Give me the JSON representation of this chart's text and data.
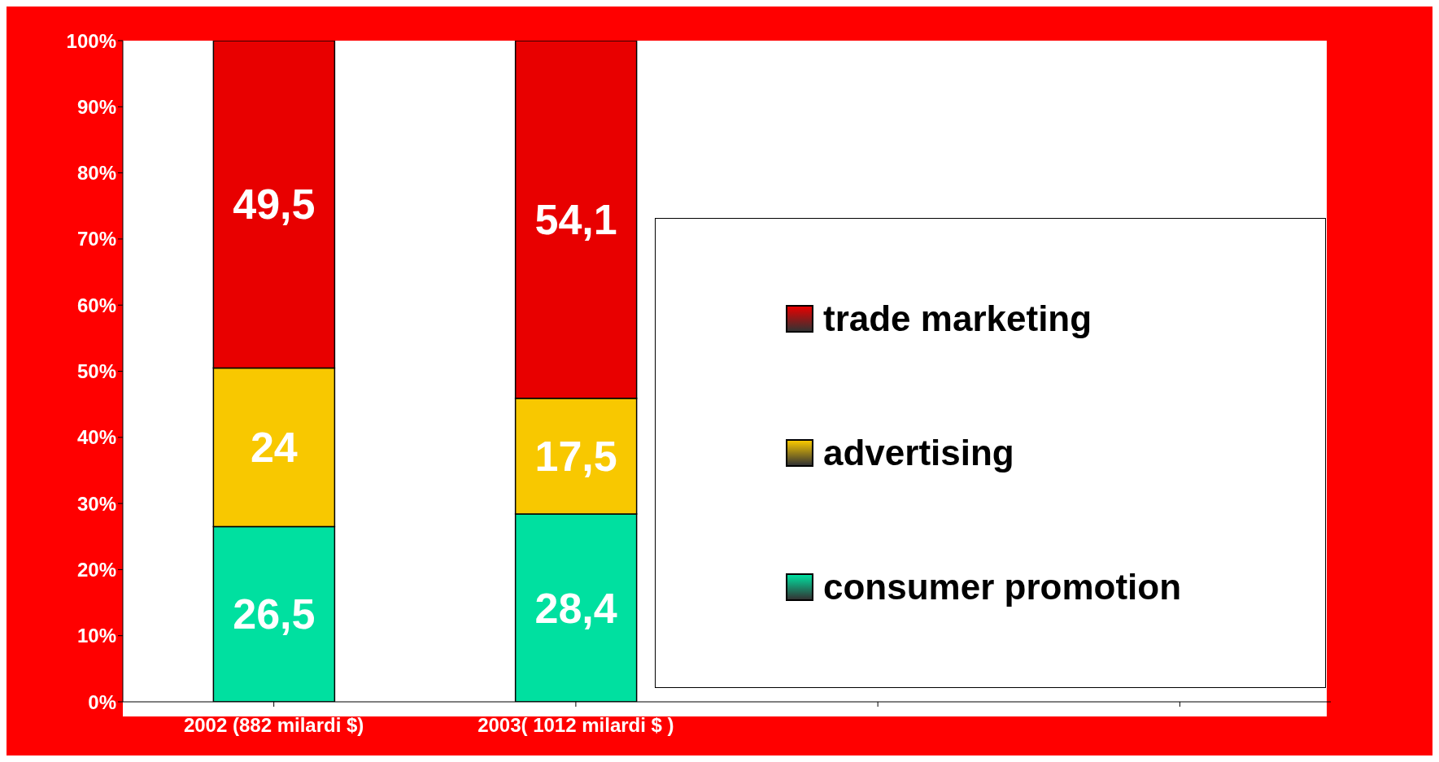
{
  "chart_data": {
    "type": "bar",
    "stacked": true,
    "categories": [
      "2002 (882 milardi $)",
      "2003( 1012 milardi $ )",
      null,
      null
    ],
    "series": [
      {
        "name": "consumer promotion",
        "color": "#00e0a0",
        "values": [
          26.5,
          28.4,
          null,
          null
        ],
        "value_labels": [
          "26,5",
          "28,4",
          null,
          null
        ]
      },
      {
        "name": "advertising",
        "color": "#f8c800",
        "values": [
          24,
          17.5,
          null,
          null
        ],
        "value_labels": [
          "24",
          "17,5",
          null,
          null
        ]
      },
      {
        "name": "trade marketing",
        "color": "#e80000",
        "values": [
          49.5,
          54.1,
          null,
          null
        ],
        "value_labels": [
          "49,5",
          "54,1",
          null,
          null
        ]
      }
    ],
    "ylim": [
      0,
      100
    ],
    "yticks": [
      {
        "value": 0,
        "label": "0%"
      },
      {
        "value": 10,
        "label": "10%"
      },
      {
        "value": 20,
        "label": "20%"
      },
      {
        "value": 30,
        "label": "30%"
      },
      {
        "value": 40,
        "label": "40%"
      },
      {
        "value": 50,
        "label": "50%"
      },
      {
        "value": 60,
        "label": "60%"
      },
      {
        "value": 70,
        "label": "70%"
      },
      {
        "value": 80,
        "label": "80%"
      },
      {
        "value": 90,
        "label": "90%"
      },
      {
        "value": 100,
        "label": "100%"
      }
    ],
    "grid": false,
    "legend": "right"
  }
}
